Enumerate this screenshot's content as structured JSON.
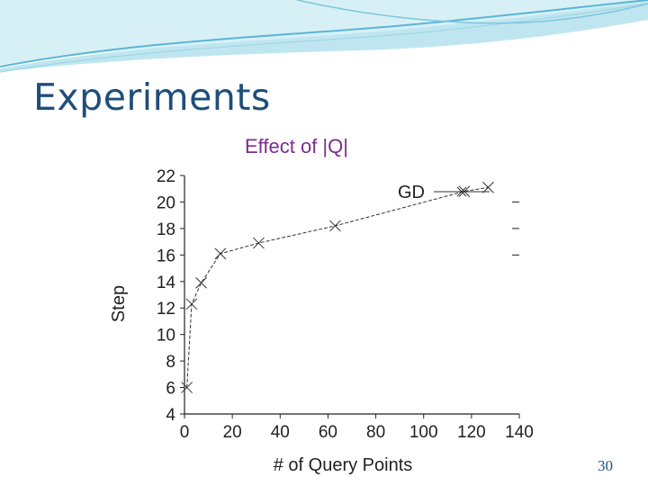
{
  "slide": {
    "title": "Experiments",
    "subtitle": "Effect of |Q|",
    "page_number": "30"
  },
  "colors": {
    "title": "#1f4e79",
    "subtitle": "#7b2d8e",
    "wave_light": "#bfe6f0",
    "wave_accent": "#5bb5d5"
  },
  "chart_data": {
    "type": "line",
    "xlabel": "# of Query Points",
    "ylabel": "Step",
    "xlim": [
      0,
      140
    ],
    "ylim": [
      4,
      22
    ],
    "xticks": [
      0,
      20,
      40,
      60,
      80,
      100,
      120,
      140
    ],
    "yticks": [
      4,
      6,
      8,
      10,
      12,
      14,
      16,
      18,
      20,
      22
    ],
    "legend_position": "top-right",
    "grid": false,
    "series": [
      {
        "name": "GD",
        "color": "#333333",
        "marker": "x",
        "line_style": "dashed",
        "x": [
          1,
          3,
          7,
          15,
          31,
          63,
          117,
          127
        ],
        "y": [
          6.0,
          12.3,
          13.9,
          16.1,
          16.9,
          18.2,
          20.8,
          21.1
        ]
      }
    ]
  }
}
